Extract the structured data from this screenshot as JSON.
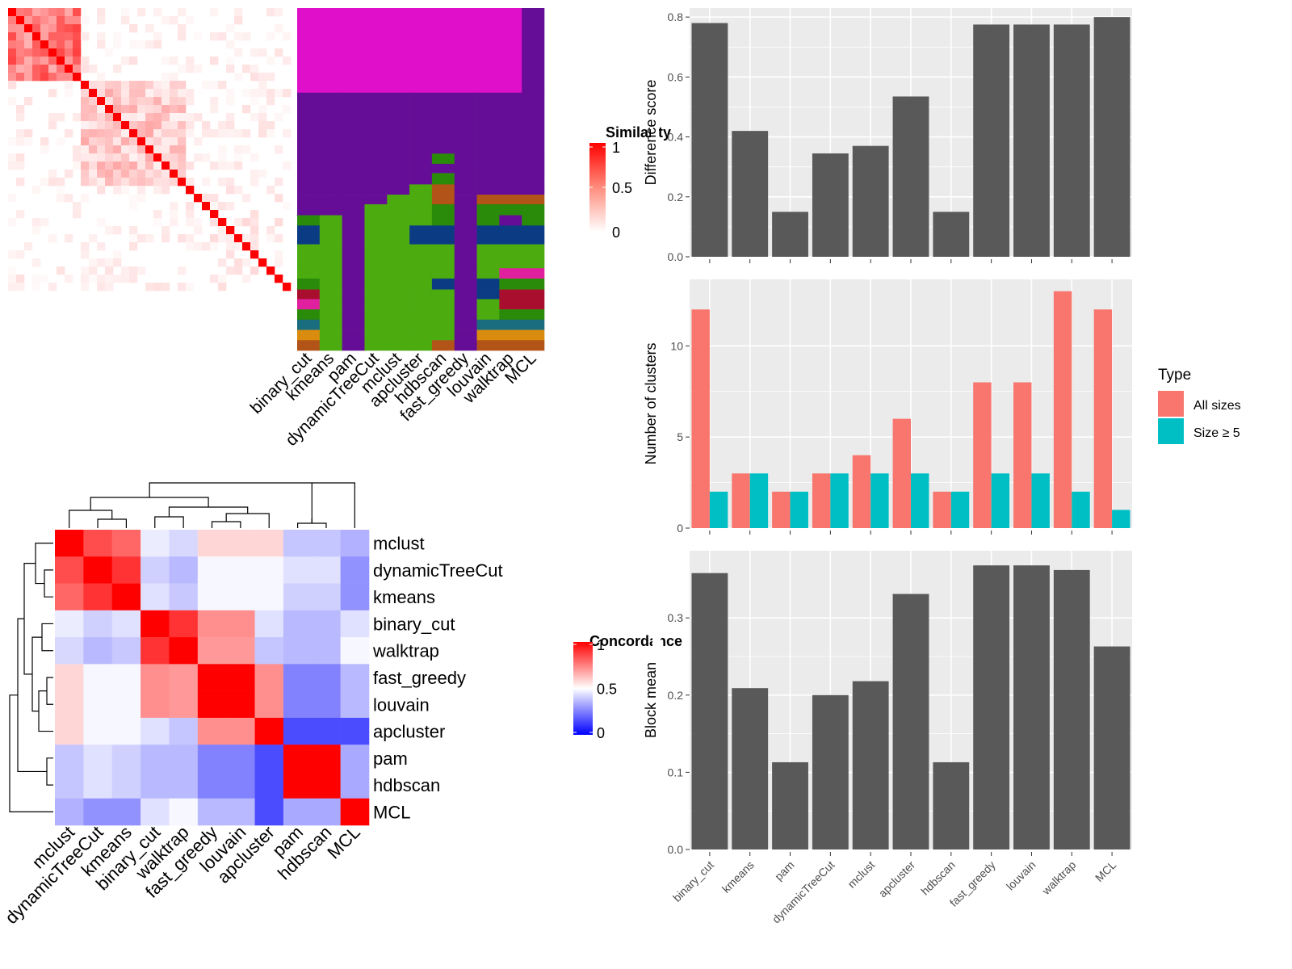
{
  "chart_data": [
    {
      "type": "heatmap",
      "name": "similarity-heatmap",
      "legend_title": "Similarity",
      "legend_ticks": [
        "1",
        "0.5",
        "0"
      ],
      "color_scale": [
        "#ffffff",
        "#ff0000"
      ]
    },
    {
      "type": "heatmap",
      "name": "partition-panel",
      "categories": [
        "binary_cut",
        "kmeans",
        "pam",
        "dynamicTreeCut",
        "mclust",
        "apcluster",
        "hdbscan",
        "fast_greedy",
        "louvain",
        "walktrap",
        "MCL"
      ]
    },
    {
      "type": "bar",
      "categories": [
        "binary_cut",
        "kmeans",
        "pam",
        "dynamicTreeCut",
        "mclust",
        "apcluster",
        "hdbscan",
        "fast_greedy",
        "louvain",
        "walktrap",
        "MCL"
      ],
      "values": [
        0.78,
        0.42,
        0.15,
        0.345,
        0.37,
        0.535,
        0.15,
        0.775,
        0.775,
        0.775,
        0.8
      ],
      "ylabel": "Difference score",
      "ylim": [
        0,
        0.83
      ],
      "yticks": [
        "0.0",
        "0.2",
        "0.4",
        "0.6",
        "0.8"
      ],
      "grid": true
    },
    {
      "type": "bar",
      "categories": [
        "binary_cut",
        "kmeans",
        "pam",
        "dynamicTreeCut",
        "mclust",
        "apcluster",
        "hdbscan",
        "fast_greedy",
        "louvain",
        "walktrap",
        "MCL"
      ],
      "series": [
        {
          "name": "All sizes",
          "values": [
            12,
            3,
            2,
            3,
            4,
            6,
            2,
            8,
            8,
            13,
            12
          ],
          "color": "#F8766D"
        },
        {
          "name": "Size ≥ 5",
          "values": [
            2,
            3,
            2,
            3,
            3,
            3,
            2,
            3,
            3,
            2,
            1
          ],
          "color": "#00BFC4"
        }
      ],
      "ylabel": "Number of clusters",
      "legend_title": "Type",
      "legend_position": "right",
      "ylim": [
        0,
        13.65
      ],
      "yticks": [
        "0",
        "5",
        "10"
      ],
      "grid": true
    },
    {
      "type": "bar",
      "categories": [
        "binary_cut",
        "kmeans",
        "pam",
        "dynamicTreeCut",
        "mclust",
        "apcluster",
        "hdbscan",
        "fast_greedy",
        "louvain",
        "walktrap",
        "MCL"
      ],
      "values": [
        0.358,
        0.209,
        0.113,
        0.2,
        0.218,
        0.331,
        0.113,
        0.368,
        0.368,
        0.362,
        0.263
      ],
      "ylabel": "Block mean",
      "ylim": [
        0,
        0.387
      ],
      "yticks": [
        "0.0",
        "0.1",
        "0.2",
        "0.3"
      ],
      "grid": true
    },
    {
      "type": "heatmap",
      "name": "concordance-heatmap",
      "row_labels": [
        "mclust",
        "dynamicTreeCut",
        "kmeans",
        "binary_cut",
        "walktrap",
        "fast_greedy",
        "louvain",
        "apcluster",
        "pam",
        "hdbscan",
        "MCL"
      ],
      "col_labels": [
        "mclust",
        "dynamicTreeCut",
        "kmeans",
        "binary_cut",
        "walktrap",
        "fast_greedy",
        "louvain",
        "apcluster",
        "pam",
        "hdbscan",
        "MCL"
      ],
      "values": [
        [
          1.0,
          0.85,
          0.8,
          0.45,
          0.4,
          0.58,
          0.58,
          0.58,
          0.35,
          0.35,
          0.3
        ],
        [
          0.85,
          1.0,
          0.9,
          0.38,
          0.32,
          0.48,
          0.48,
          0.48,
          0.42,
          0.42,
          0.22
        ],
        [
          0.8,
          0.9,
          1.0,
          0.42,
          0.36,
          0.48,
          0.48,
          0.48,
          0.38,
          0.38,
          0.22
        ],
        [
          0.45,
          0.38,
          0.42,
          1.0,
          0.9,
          0.72,
          0.72,
          0.42,
          0.32,
          0.32,
          0.42
        ],
        [
          0.4,
          0.32,
          0.36,
          0.9,
          1.0,
          0.7,
          0.7,
          0.35,
          0.32,
          0.32,
          0.48
        ],
        [
          0.58,
          0.48,
          0.48,
          0.72,
          0.7,
          1.0,
          1.0,
          0.72,
          0.18,
          0.18,
          0.32
        ],
        [
          0.58,
          0.48,
          0.48,
          0.72,
          0.7,
          1.0,
          1.0,
          0.72,
          0.18,
          0.18,
          0.32
        ],
        [
          0.58,
          0.48,
          0.48,
          0.42,
          0.35,
          0.72,
          0.72,
          1.0,
          0.04,
          0.04,
          0.04
        ],
        [
          0.35,
          0.42,
          0.38,
          0.32,
          0.32,
          0.18,
          0.18,
          0.04,
          1.0,
          1.0,
          0.28
        ],
        [
          0.35,
          0.42,
          0.38,
          0.32,
          0.32,
          0.18,
          0.18,
          0.04,
          1.0,
          1.0,
          0.28
        ],
        [
          0.3,
          0.22,
          0.22,
          0.42,
          0.48,
          0.32,
          0.32,
          0.04,
          0.28,
          0.28,
          1.0
        ]
      ],
      "legend_title": "Concordance",
      "legend_ticks": [
        "1",
        "0.5",
        "0"
      ],
      "color_scale": [
        "#0000ff",
        "#ffffff",
        "#ff0000"
      ]
    }
  ]
}
